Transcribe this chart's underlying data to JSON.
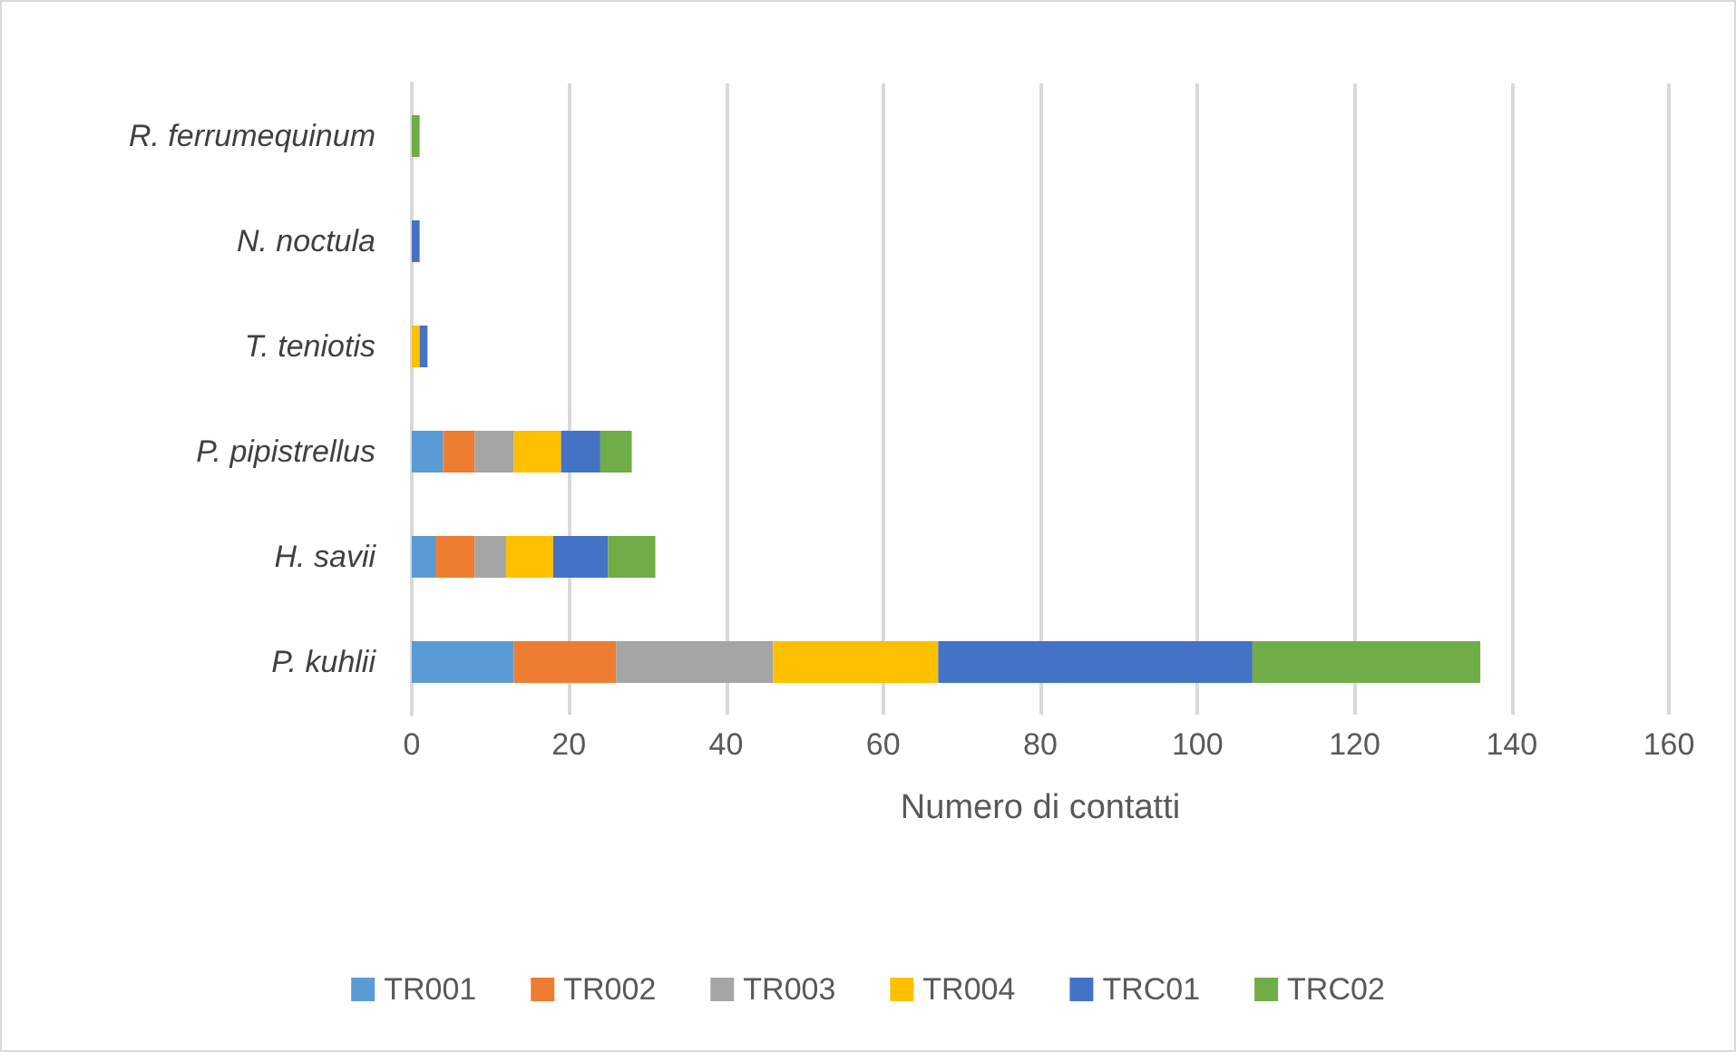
{
  "chart_data": {
    "type": "bar",
    "orientation": "horizontal",
    "stacked": true,
    "xlabel": "Numero di contatti",
    "categories": [
      "R. ferrumequinum",
      "N. noctula",
      "T. teniotis",
      "P. pipistrellus",
      "H. savii",
      "P. kuhlii"
    ],
    "series": [
      {
        "name": "TR001",
        "color": "#5b9bd5",
        "values": [
          0,
          0,
          0,
          4,
          3,
          13
        ]
      },
      {
        "name": "TR002",
        "color": "#ed7d31",
        "values": [
          0,
          0,
          0,
          4,
          5,
          13
        ]
      },
      {
        "name": "TR003",
        "color": "#a5a5a5",
        "values": [
          0,
          0,
          0,
          5,
          4,
          20
        ]
      },
      {
        "name": "TR004",
        "color": "#ffc000",
        "values": [
          0,
          0,
          1,
          6,
          6,
          21
        ]
      },
      {
        "name": "TRC01",
        "color": "#4472c4",
        "values": [
          0,
          1,
          1,
          5,
          7,
          40
        ]
      },
      {
        "name": "TRC02",
        "color": "#70ad47",
        "values": [
          1,
          0,
          0,
          4,
          6,
          29
        ]
      }
    ],
    "xlim": [
      0,
      160
    ],
    "xticks": [
      0,
      20,
      40,
      60,
      80,
      100,
      120,
      140,
      160
    ],
    "grid": "x",
    "legend": "bottom"
  }
}
